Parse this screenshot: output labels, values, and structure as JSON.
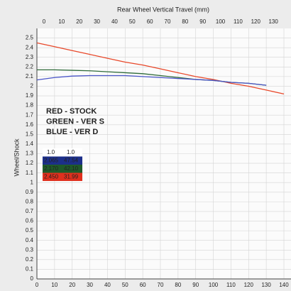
{
  "chart_data": {
    "type": "line",
    "title": "Rear Wheel Vertical Travel (mm)",
    "y_label": "Wheel/Shock",
    "x": [
      0,
      10,
      20,
      30,
      40,
      50,
      60,
      70,
      80,
      90,
      100,
      110,
      120,
      130,
      140
    ],
    "series": [
      {
        "name": "RED - STOCK",
        "color": "#e8482a",
        "values": [
          2.45,
          2.41,
          2.37,
          2.33,
          2.29,
          2.25,
          2.22,
          2.18,
          2.14,
          2.1,
          2.07,
          2.03,
          2.0,
          1.96,
          1.92
        ]
      },
      {
        "name": "GREEN - VER S",
        "color": "#2f6b3a",
        "values": [
          2.17,
          2.17,
          2.165,
          2.16,
          2.15,
          2.14,
          2.13,
          2.11,
          2.09,
          2.07,
          2.06,
          2.04,
          2.03,
          2.01,
          null
        ]
      },
      {
        "name": "BLUE - VER D",
        "color": "#4a55c8",
        "values": [
          2.065,
          2.09,
          2.105,
          2.11,
          2.11,
          2.11,
          2.1,
          2.09,
          2.08,
          2.07,
          2.06,
          2.04,
          2.03,
          2.01,
          null
        ]
      }
    ],
    "legend_colors": [
      "#e8242a",
      "#2aa84a",
      "#4a55d8"
    ],
    "xlim": [
      0,
      140
    ],
    "xticks": [
      0,
      10,
      20,
      30,
      40,
      50,
      60,
      70,
      80,
      90,
      100,
      110,
      120,
      130,
      140
    ],
    "xticks_top": [
      0,
      10,
      20,
      30,
      40,
      50,
      60,
      70,
      80,
      90,
      100,
      110,
      120,
      130
    ],
    "ylim": [
      0,
      2.6
    ],
    "yticks": [
      0,
      0.1,
      0.2,
      0.3,
      0.4,
      0.5,
      0.6,
      0.7,
      0.8,
      0.9,
      1,
      1.1,
      1.2,
      1.3,
      1.4,
      1.5,
      1.6,
      1.7,
      1.8,
      1.9,
      2,
      2.1,
      2.2,
      2.3,
      2.4,
      2.5
    ],
    "grid": true,
    "inset_table": {
      "header": [
        "1.0",
        "1.0"
      ],
      "rows": [
        [
          "2.065",
          "47.54"
        ],
        [
          "2.170",
          "42.10"
        ],
        [
          "2.450",
          "31.99"
        ]
      ],
      "row_colors": [
        "#1c2f8a",
        "#1f5a2a",
        "#e0301e"
      ]
    }
  }
}
